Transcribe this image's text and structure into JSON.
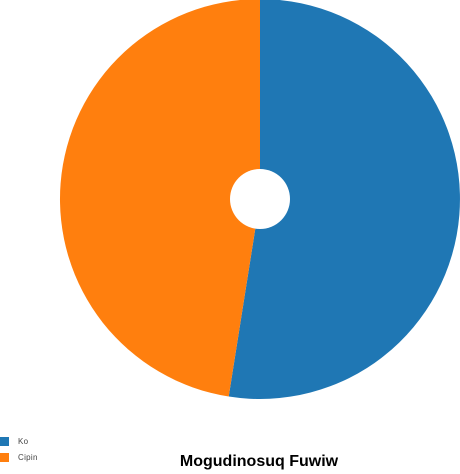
{
  "chart_data": {
    "type": "pie",
    "title": "Mogudinosuq Fuwiw",
    "donut_hole": true,
    "legend_position": "bottom-left",
    "slices": [
      {
        "label": "Ko",
        "value": 52.5,
        "color": "#1f77b4"
      },
      {
        "label": "Cipin",
        "value": 47.5,
        "color": "#ff7f0e"
      }
    ]
  }
}
